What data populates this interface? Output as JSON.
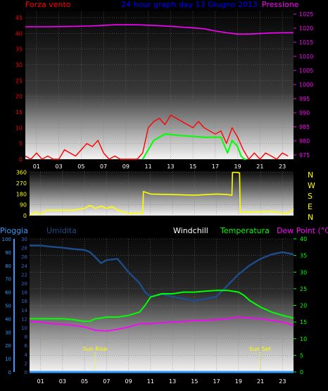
{
  "header": {
    "left_label": "Forza vento",
    "title": "24 hour graph day  13 Giugno 2013",
    "right_label": "Pressione"
  },
  "compass": [
    "N",
    "W",
    "S",
    "E",
    "N"
  ],
  "lower_labels": {
    "pioggia": "Pioggia",
    "umidita": "Umidita",
    "windchill": "Windchill",
    "temperatura": "Temperatura",
    "dewpoint": "Dew Point (°C)"
  },
  "annotations": {
    "sunrise": "Sun Rise",
    "sunset": "Sun Set"
  },
  "colors": {
    "wind": "#ff0000",
    "gust": "#00ff00",
    "pressure": "#ff00ff",
    "direction": "#ffff00",
    "humidity": "#1e4d8c",
    "temperature": "#00ff00",
    "dewpoint": "#ff00ff",
    "rain": "#3399ff",
    "title": "#0000ff"
  },
  "chart_data": [
    {
      "type": "line",
      "name": "wind-pressure",
      "x_ticks": [
        "01",
        "03",
        "05",
        "07",
        "09",
        "11",
        "13",
        "15",
        "17",
        "19",
        "21",
        "23"
      ],
      "y_left_ticks": [
        0,
        5,
        10,
        15,
        20,
        25,
        30,
        35,
        40,
        45
      ],
      "y_right_ticks": [
        975,
        980,
        985,
        990,
        995,
        1000,
        1005,
        1010,
        1015,
        1020,
        1025
      ],
      "ylim_left": [
        0,
        47
      ],
      "ylim_right": [
        973.5,
        1026
      ],
      "xlim": [
        0,
        24
      ],
      "pressure": {
        "x": [
          0,
          2,
          4,
          6,
          8,
          10,
          12,
          14,
          16,
          17,
          18,
          19,
          20,
          21,
          22,
          23,
          24
        ],
        "y": [
          1020.5,
          1020.5,
          1020.6,
          1020.8,
          1021.2,
          1021.2,
          1020.9,
          1020.4,
          1019.8,
          1019.0,
          1018.4,
          1017.9,
          1017.9,
          1018.1,
          1018.3,
          1018.4,
          1018.4
        ]
      },
      "gust": {
        "x": [
          10.5,
          11.0,
          11.5,
          12.5,
          14,
          16,
          17.5,
          18.1,
          18.5,
          19.0,
          19.3,
          19.6,
          19.8
        ],
        "y": [
          0,
          3,
          6,
          8,
          7.5,
          7,
          7,
          2,
          6,
          4,
          1,
          0,
          0
        ]
      },
      "wind": {
        "x": [
          0,
          0.5,
          1,
          1.5,
          2,
          2.5,
          3,
          3.5,
          4,
          4.5,
          5,
          5.5,
          6,
          6.5,
          7,
          7.5,
          8,
          8.5,
          9,
          9.5,
          10,
          10.5,
          11,
          11.5,
          12,
          12.5,
          13,
          13.5,
          14,
          14.5,
          15,
          15.5,
          16,
          16.5,
          17,
          17.5,
          18,
          18.5,
          19,
          19.5,
          20,
          20.5,
          21,
          21.5,
          22,
          22.5,
          23,
          23.5
        ],
        "y": [
          1,
          0,
          2,
          0,
          1,
          0,
          0,
          3,
          2,
          1,
          3,
          5,
          4,
          6,
          2,
          0,
          1,
          0,
          0,
          0,
          0,
          2,
          10,
          12,
          13,
          11,
          14,
          13,
          12,
          11,
          10,
          12,
          10,
          9,
          8,
          9,
          5,
          10,
          7,
          3,
          0,
          2,
          0,
          2,
          1,
          0,
          2,
          1
        ]
      }
    },
    {
      "type": "line",
      "name": "wind-direction",
      "y_ticks": [
        0,
        90,
        180,
        270,
        360
      ],
      "ylim": [
        0,
        370
      ],
      "xlim": [
        0,
        24
      ],
      "direction": {
        "x": [
          0,
          0.5,
          1.0,
          1.5,
          2.0,
          4.0,
          5.0,
          5.5,
          6.0,
          6.5,
          7.0,
          7.5,
          8.0,
          9.0,
          10.0,
          10.3,
          10.35,
          11.0,
          13.0,
          15.0,
          17.0,
          18.0,
          18.4,
          18.45,
          18.9,
          19.1,
          19.15,
          20.0,
          22.0,
          23.0,
          23.5,
          24.0
        ],
        "y": [
          0,
          30,
          10,
          45,
          45,
          45,
          60,
          85,
          60,
          80,
          60,
          75,
          45,
          20,
          20,
          20,
          200,
          180,
          175,
          170,
          180,
          175,
          170,
          360,
          360,
          355,
          30,
          30,
          35,
          20,
          20,
          55
        ]
      }
    },
    {
      "type": "line",
      "name": "humidity-temp-rain",
      "x_ticks": [
        "01",
        "03",
        "05",
        "07",
        "09",
        "11",
        "13",
        "15",
        "17",
        "19",
        "21",
        "23"
      ],
      "y_rain_ticks": [
        0,
        10,
        20,
        30,
        40,
        50,
        60,
        70,
        80,
        90,
        100
      ],
      "y_hum_ticks": [
        0,
        2,
        4,
        6,
        8,
        10,
        12,
        14,
        16,
        18,
        20,
        22,
        24,
        26,
        28,
        30
      ],
      "y_temp_ticks": [
        0,
        5,
        10,
        15,
        20,
        25,
        30,
        35,
        40
      ],
      "ylim_temp": [
        0,
        40
      ],
      "xlim": [
        0,
        24
      ],
      "sunrise_x": 5.95,
      "sunset_x": 20.95,
      "humidity": {
        "x": [
          0,
          1,
          2,
          3,
          4,
          5,
          5.5,
          6,
          6.5,
          7,
          8,
          9,
          10,
          10.5,
          11,
          12,
          13,
          14,
          15,
          16,
          17,
          18,
          19,
          20,
          21,
          22,
          23,
          24
        ],
        "y": [
          28.5,
          28.5,
          28.2,
          28.0,
          27.7,
          27.5,
          27.0,
          25.8,
          24.5,
          25.2,
          25.5,
          22.5,
          20.0,
          18.0,
          17.0,
          17.5,
          17.0,
          16.5,
          16.0,
          16.5,
          17.0,
          19.5,
          22.0,
          24.0,
          25.5,
          26.5,
          27.0,
          26.5
        ]
      },
      "temperature": {
        "x": [
          0,
          1,
          2,
          3,
          4,
          5,
          5.5,
          6,
          6.5,
          7,
          8,
          9,
          10,
          10.5,
          11,
          12,
          13,
          14,
          15,
          16,
          17,
          18,
          19,
          19.5,
          20,
          21,
          22,
          23,
          24
        ],
        "y": [
          16.0,
          16.0,
          16.0,
          16.0,
          15.7,
          15.2,
          15.3,
          16.0,
          16.2,
          16.5,
          16.5,
          17.0,
          18.0,
          20.0,
          22.5,
          23.5,
          23.5,
          24.0,
          24.0,
          24.3,
          24.5,
          24.5,
          24.0,
          23.0,
          21.5,
          19.5,
          18.0,
          17.0,
          16.2
        ]
      },
      "dewpoint": {
        "x": [
          0,
          1,
          2,
          3,
          4,
          5,
          6,
          7,
          8,
          9,
          10,
          11,
          12,
          13,
          14,
          15,
          16,
          17,
          18,
          19,
          20,
          21,
          22,
          23,
          24
        ],
        "y": [
          15.2,
          15.0,
          14.5,
          14.3,
          14.0,
          13.5,
          12.5,
          12.3,
          12.8,
          13.5,
          14.5,
          14.5,
          14.8,
          15.0,
          15.2,
          15.5,
          15.5,
          15.7,
          16.0,
          16.5,
          16.2,
          16.0,
          15.5,
          15.0,
          14.0
        ]
      },
      "rain": {
        "x": [
          0,
          24
        ],
        "y": [
          0,
          0
        ]
      }
    }
  ]
}
